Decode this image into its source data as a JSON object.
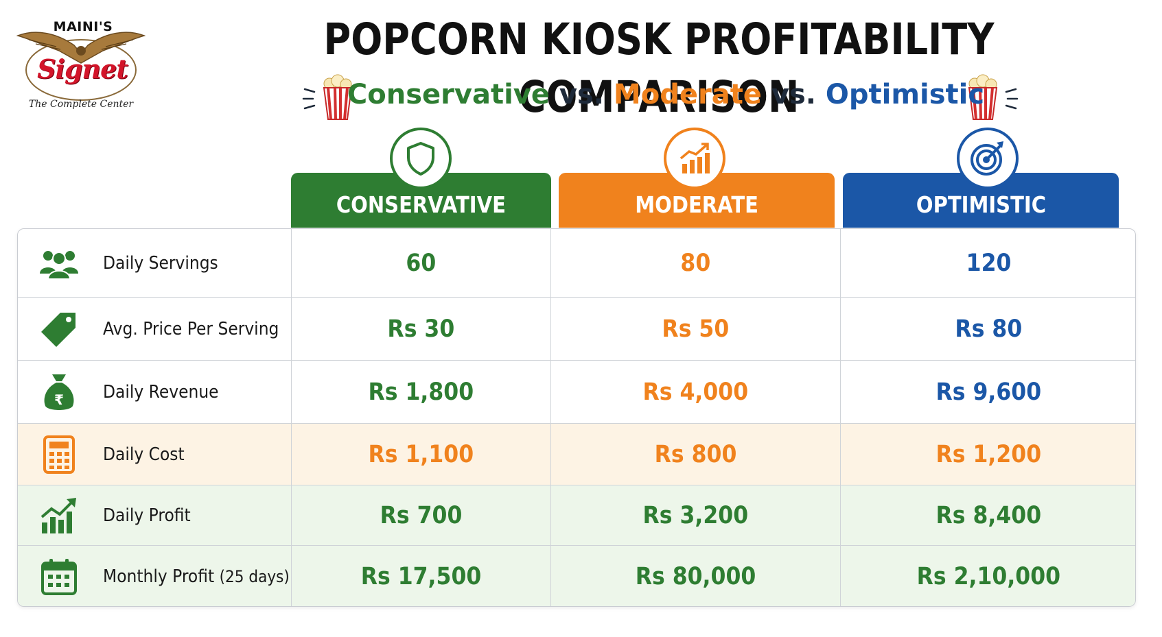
{
  "logo": {
    "top_text": "MAINI'S",
    "name": "Signet",
    "tagline": "The Complete Center"
  },
  "title": "POPCORN KIOSK PROFITABILITY COMPARISON",
  "subtitle": {
    "conservative": "Conservative",
    "vs1": " vs. ",
    "moderate": "Moderate",
    "vs2": " vs. ",
    "optimistic": "Optimistic"
  },
  "columns": [
    {
      "label": "CONSERVATIVE",
      "icon": "shield-icon",
      "color": "#2e7d32"
    },
    {
      "label": "MODERATE",
      "icon": "growth-chart-icon",
      "color": "#f0821d"
    },
    {
      "label": "OPTIMISTIC",
      "icon": "target-icon",
      "color": "#1b57a7"
    }
  ],
  "rows": [
    {
      "label": "Daily Servings",
      "icon": "people-icon",
      "values": [
        "60",
        "80",
        "120"
      ]
    },
    {
      "label": "Avg. Price Per Serving",
      "icon": "price-tag-icon",
      "values": [
        "Rs 30",
        "Rs 50",
        "Rs 80"
      ]
    },
    {
      "label": "Daily Revenue",
      "icon": "money-bag-icon",
      "values": [
        "Rs 1,800",
        "Rs 4,000",
        "Rs 9,600"
      ]
    },
    {
      "label": "Daily Cost",
      "icon": "calculator-icon",
      "values": [
        "Rs 1,100",
        "Rs 800",
        "Rs 1,200"
      ]
    },
    {
      "label": "Daily Profit",
      "icon": "profit-chart-icon",
      "values": [
        "Rs 700",
        "Rs 3,200",
        "Rs 8,400"
      ]
    },
    {
      "label": "Monthly Profit",
      "label_suffix": "(25 days)",
      "icon": "calendar-icon",
      "values": [
        "Rs 17,500",
        "Rs 80,000",
        "Rs 2,10,000"
      ]
    }
  ],
  "colors": {
    "green": "#2e7d32",
    "orange": "#f0821d",
    "blue": "#1b57a7",
    "cost_row_bg": "#fdf3e4",
    "profit_row_bg": "#edf6ea"
  }
}
